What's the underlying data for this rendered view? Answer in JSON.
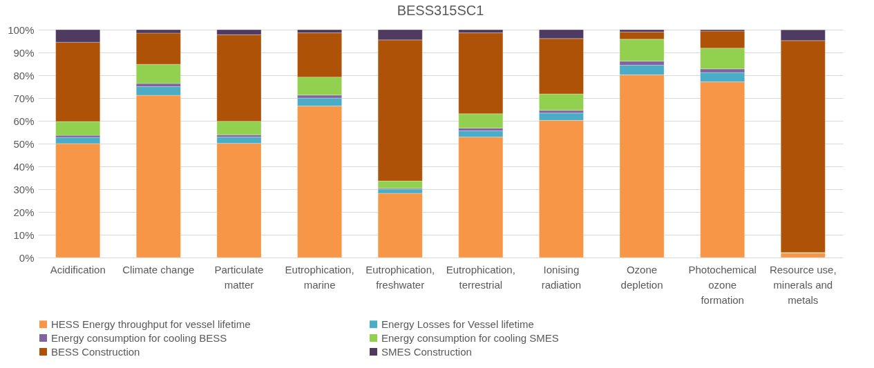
{
  "chart_data": {
    "type": "bar",
    "title": "BESS315SC1",
    "stacked": true,
    "categories": [
      "Acidification",
      "Climate change",
      "Particulate matter",
      "Eutrophication, marine",
      "Eutrophication, freshwater",
      "Eutrophication, terrestrial",
      "Ionising radiation",
      "Ozone depletion",
      "Photochemical ozone formation",
      "Resource use, minerals and metals"
    ],
    "series": [
      {
        "name": "HESS Energy throughput for vessel lifetime",
        "color": "#f79646",
        "values": [
          50.0,
          71.2,
          50.1,
          66.5,
          28.2,
          52.9,
          60.2,
          80.2,
          77.1,
          2.0
        ]
      },
      {
        "name": "Energy Losses for Vessel lifetime",
        "color": "#4bacc6",
        "values": [
          2.7,
          3.8,
          2.8,
          3.5,
          1.8,
          2.7,
          3.2,
          4.2,
          4.1,
          null
        ]
      },
      {
        "name": "Energy consumption for cooling BESS",
        "color": "#8064a2",
        "values": [
          0.9,
          1.4,
          1.0,
          1.3,
          0.4,
          1.2,
          1.2,
          1.8,
          1.6,
          null
        ]
      },
      {
        "name": "Energy consumption for cooling SMES",
        "color": "#92d050",
        "values": [
          6.1,
          8.4,
          5.9,
          7.9,
          3.2,
          6.3,
          7.2,
          9.6,
          9.1,
          0.2
        ]
      },
      {
        "name": "BESS Construction",
        "color": "#ad5207",
        "values": [
          34.8,
          13.7,
          38.0,
          19.4,
          61.9,
          35.5,
          24.3,
          3.2,
          7.5,
          93.0
        ]
      },
      {
        "name": "SMES Construction",
        "color": "#4f3a62",
        "values": [
          5.5,
          1.5,
          2.2,
          1.4,
          4.5,
          1.4,
          3.9,
          1.0,
          0.6,
          4.7
        ]
      }
    ],
    "ylim": [
      0,
      100
    ],
    "yticks": [
      {
        "value": 0,
        "label": "0%"
      },
      {
        "value": 10,
        "label": "10%"
      },
      {
        "value": 20,
        "label": "20%"
      },
      {
        "value": 30,
        "label": "30%"
      },
      {
        "value": 40,
        "label": "40%"
      },
      {
        "value": 50,
        "label": "50%"
      },
      {
        "value": 60,
        "label": "60%"
      },
      {
        "value": 70,
        "label": "70%"
      },
      {
        "value": 80,
        "label": "80%"
      },
      {
        "value": 90,
        "label": "90%"
      },
      {
        "value": 100,
        "label": "100%"
      }
    ],
    "grid": "y",
    "legend": "bottom"
  }
}
